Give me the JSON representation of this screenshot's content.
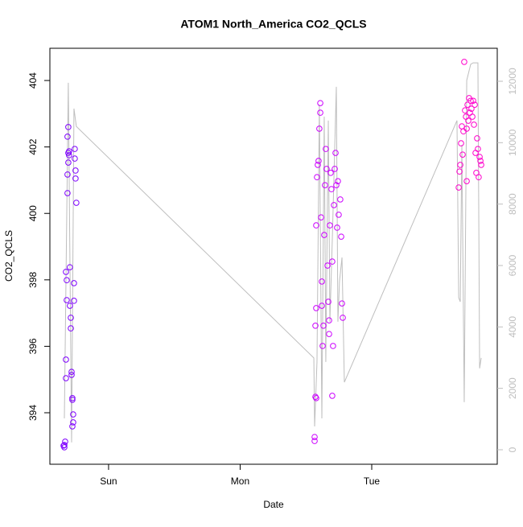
{
  "chart_data": {
    "type": "scatter",
    "title": "ATOM1 North_America CO2_QCLS",
    "x_label": "Date",
    "y_label": "CO2_QCLS",
    "xlim": [
      0.554,
      3.954
    ],
    "xticks": [
      {
        "value": 1,
        "label": "Sun"
      },
      {
        "value": 2,
        "label": "Mon"
      },
      {
        "value": 3,
        "label": "Tue"
      }
    ],
    "ylim": [
      392.45,
      404.97
    ],
    "yticks": [
      394,
      396,
      398,
      400,
      402,
      404
    ],
    "y2lim": [
      -472,
      13074
    ],
    "y2ticks": [
      0,
      2000,
      4000,
      6000,
      8000,
      10000,
      12000
    ],
    "y2_color": "#bebebe",
    "series": [
      {
        "color": "#7f00ff",
        "x": [
          0.664,
          0.664,
          0.67,
          0.658,
          0.676,
          0.676,
          0.682,
          0.682,
          0.676,
          0.688,
          0.688,
          0.694,
          0.694,
          0.688,
          0.694,
          0.7,
          0.7,
          0.706,
          0.706,
          0.713,
          0.713,
          0.719,
          0.719,
          0.725,
          0.725,
          0.731,
          0.725,
          0.731,
          0.737,
          0.737,
          0.743,
          0.743,
          0.749,
          0.749,
          0.755
        ],
        "values": [
          392.96,
          393.03,
          393.13,
          393.01,
          395.04,
          395.6,
          397.39,
          397.99,
          398.24,
          400.61,
          401.17,
          401.53,
          402.6,
          402.31,
          401.82,
          401.75,
          401.87,
          398.38,
          397.22,
          396.86,
          396.54,
          395.23,
          395.14,
          394.44,
          394.39,
          393.71,
          393.59,
          393.95,
          397.9,
          397.37,
          401.94,
          401.65,
          401.29,
          401.05,
          400.32
        ]
      },
      {
        "color": "#cc00ff",
        "x": [
          2.566,
          2.566,
          2.572,
          2.578,
          2.572,
          2.578,
          2.578,
          2.584,
          2.59,
          2.596,
          2.602,
          2.609,
          2.609,
          2.615,
          2.621,
          2.621,
          2.627,
          2.633,
          2.639,
          2.645,
          2.651,
          2.657,
          2.664,
          2.67,
          2.676,
          2.676,
          2.682,
          2.688,
          2.694,
          2.7,
          2.7,
          2.706,
          2.713,
          2.719,
          2.725,
          2.731,
          2.737,
          2.743,
          2.749,
          2.761,
          2.768,
          2.774,
          2.78
        ],
        "values": [
          393.27,
          393.15,
          394.48,
          394.44,
          396.62,
          397.15,
          399.64,
          401.09,
          401.46,
          401.58,
          402.55,
          403.32,
          403.03,
          399.88,
          397.95,
          397.22,
          396.01,
          396.62,
          399.35,
          400.85,
          401.94,
          401.34,
          398.43,
          397.34,
          396.78,
          396.37,
          399.64,
          401.22,
          400.73,
          398.55,
          394.51,
          396.01,
          400.25,
          401.34,
          401.82,
          400.85,
          399.57,
          400.97,
          399.96,
          400.42,
          399.3,
          397.29,
          396.86
        ]
      },
      {
        "color": "#ff00cc",
        "x": [
          3.661,
          3.667,
          3.673,
          3.679,
          3.685,
          3.691,
          3.697,
          3.703,
          3.709,
          3.716,
          3.722,
          3.728,
          3.734,
          3.74,
          3.746,
          3.752,
          3.758,
          3.765,
          3.771,
          3.777,
          3.783,
          3.789,
          3.795,
          3.801,
          3.807,
          3.813,
          3.82,
          3.826,
          3.832,
          3.722
        ],
        "values": [
          400.78,
          401.26,
          401.46,
          402.11,
          402.62,
          401.77,
          402.47,
          404.56,
          403.1,
          402.91,
          402.55,
          403.27,
          402.79,
          403.47,
          403.03,
          403.39,
          403.15,
          402.91,
          403.39,
          402.67,
          403.27,
          401.82,
          401.22,
          402.26,
          401.94,
          401.09,
          401.7,
          401.58,
          401.46,
          400.97
        ]
      },
      {
        "color": "#bebebe",
        "type": "line",
        "axis": "y2",
        "x": [
          0.664,
          0.694,
          0.719,
          0.737,
          0.755,
          2.56,
          2.566,
          2.584,
          2.602,
          2.621,
          2.639,
          2.651,
          2.67,
          2.682,
          2.7,
          2.731,
          2.743,
          2.755,
          2.774,
          2.792,
          3.648,
          3.661,
          3.673,
          3.685,
          3.703,
          3.722,
          3.752,
          3.771,
          3.807,
          3.82,
          3.832
        ],
        "values": [
          1020,
          11950,
          240,
          11110,
          10530,
          2990,
          760,
          2860,
          11240,
          1020,
          10850,
          2860,
          10720,
          4170,
          6790,
          11820,
          4170,
          5480,
          6260,
          2200,
          10720,
          4950,
          4820,
          9930,
          1550,
          12030,
          12550,
          12600,
          12600,
          2650,
          2990
        ]
      }
    ]
  }
}
